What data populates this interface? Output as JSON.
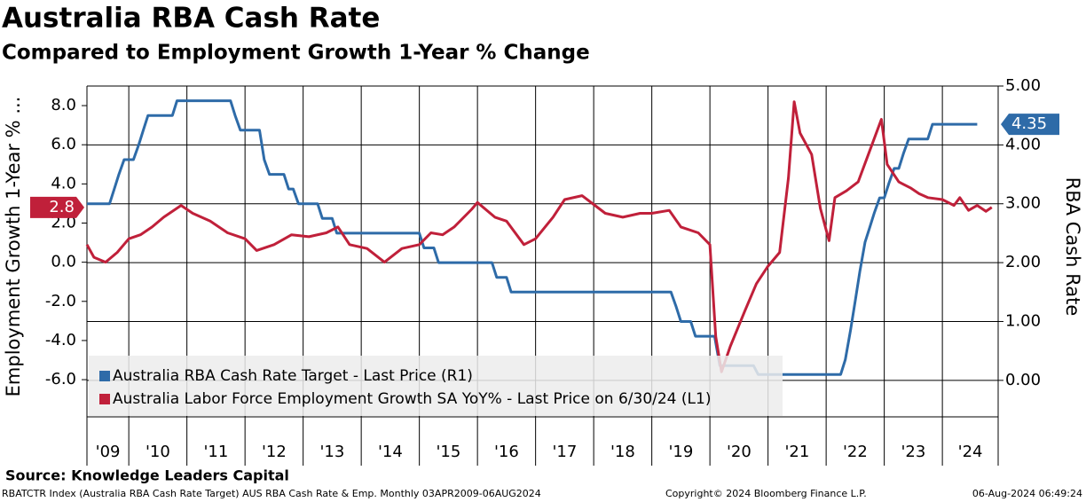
{
  "chart_data": {
    "type": "line",
    "title": "Australia RBA Cash Rate",
    "subtitle": "Compared to Employment Growth 1-Year % Change",
    "source": "Source: Knowledge Leaders Capital",
    "footer_left": "RBATCTR Index (Australia RBA Cash Rate Target) AUS RBA Cash Rate & Emp.  Monthly 03APR2009-06AUG2024",
    "footer_center": "Copyright© 2024 Bloomberg Finance L.P.",
    "footer_right": "06-Aug-2024 06:49:24",
    "y_label": "Employment Growth 1-Year % ...",
    "y2_label": "RBA Cash Rate",
    "xlim": [
      2009.28,
      2024.96
    ],
    "xticks": [
      2010,
      2011,
      2012,
      2013,
      2014,
      2015,
      2016,
      2017,
      2018,
      2019,
      2020,
      2021,
      2022,
      2023,
      2024
    ],
    "x_labels": [
      "'09",
      "'10",
      "'11",
      "'12",
      "'13",
      "'14",
      "'15",
      "'16",
      "'17",
      "'18",
      "'19",
      "'20",
      "'21",
      "'22",
      "'23",
      "'24"
    ],
    "ylim": [
      -7.9,
      9.0
    ],
    "yticks": [
      {
        "value": 8,
        "label": "8.0"
      },
      {
        "value": 6,
        "label": "6.0"
      },
      {
        "value": 4,
        "label": "4.0"
      },
      {
        "value": 2,
        "label": "2.0"
      },
      {
        "value": 0,
        "label": "0.0"
      },
      {
        "value": -2,
        "label": "-2.0"
      },
      {
        "value": -4,
        "label": "-4.0"
      },
      {
        "value": -6,
        "label": "-6.0"
      }
    ],
    "y2lim": [
      -0.62,
      5.0
    ],
    "y2ticks": [
      {
        "value": 5,
        "label": "5.00"
      },
      {
        "value": 4,
        "label": "4.00"
      },
      {
        "value": 3,
        "label": "3.00"
      },
      {
        "value": 2,
        "label": "2.00"
      },
      {
        "value": 1,
        "label": "1.00"
      },
      {
        "value": 0,
        "label": "0.00"
      }
    ],
    "grid": true,
    "legend": "bottom-left",
    "series": [
      {
        "name": "Australia RBA Cash Rate Target - Last Price (R1)",
        "color": "#2e6ba8",
        "axis": "y2",
        "x": [
          2009.28,
          2009.67,
          2009.75,
          2009.83,
          2009.92,
          2010.08,
          2010.17,
          2010.25,
          2010.33,
          2010.75,
          2010.83,
          2011.75,
          2011.83,
          2011.92,
          2012.25,
          2012.33,
          2012.42,
          2012.67,
          2012.75,
          2012.83,
          2012.92,
          2013.25,
          2013.33,
          2013.5,
          2013.58,
          2015.0,
          2015.08,
          2015.25,
          2015.33,
          2016.25,
          2016.33,
          2016.5,
          2016.58,
          2019.33,
          2019.42,
          2019.5,
          2019.67,
          2019.75,
          2020.08,
          2020.17,
          2020.75,
          2020.83,
          2022.25,
          2022.33,
          2022.42,
          2022.5,
          2022.58,
          2022.67,
          2022.75,
          2022.83,
          2022.92,
          2023.0,
          2023.08,
          2023.17,
          2023.25,
          2023.33,
          2023.42,
          2023.75,
          2023.83,
          2024.6
        ],
        "values": [
          3.0,
          3.0,
          3.25,
          3.5,
          3.75,
          3.75,
          4.0,
          4.25,
          4.5,
          4.5,
          4.75,
          4.75,
          4.5,
          4.25,
          4.25,
          3.75,
          3.5,
          3.5,
          3.25,
          3.25,
          3.0,
          3.0,
          2.75,
          2.75,
          2.5,
          2.5,
          2.25,
          2.25,
          2.0,
          2.0,
          1.75,
          1.75,
          1.5,
          1.5,
          1.25,
          1.0,
          1.0,
          0.75,
          0.75,
          0.25,
          0.25,
          0.1,
          0.1,
          0.35,
          0.85,
          1.35,
          1.85,
          2.35,
          2.6,
          2.85,
          3.1,
          3.1,
          3.35,
          3.6,
          3.6,
          3.85,
          4.1,
          4.1,
          4.35,
          4.35
        ]
      },
      {
        "name": "Australia Labor Force Employment Growth SA YoY% - Last Price on 6/30/24 (L1)",
        "color": "#c0203a",
        "axis": "y",
        "x": [
          2009.28,
          2009.4,
          2009.6,
          2009.8,
          2010.0,
          2010.2,
          2010.4,
          2010.6,
          2010.9,
          2011.1,
          2011.4,
          2011.7,
          2012.0,
          2012.2,
          2012.5,
          2012.8,
          2013.1,
          2013.4,
          2013.6,
          2013.8,
          2014.1,
          2014.4,
          2014.7,
          2015.0,
          2015.2,
          2015.4,
          2015.6,
          2015.9,
          2016.0,
          2016.3,
          2016.5,
          2016.8,
          2017.0,
          2017.3,
          2017.5,
          2017.8,
          2018.0,
          2018.2,
          2018.5,
          2018.8,
          2019.0,
          2019.3,
          2019.5,
          2019.8,
          2020.0,
          2020.1,
          2020.2,
          2020.35,
          2020.6,
          2020.8,
          2021.0,
          2021.2,
          2021.35,
          2021.45,
          2021.55,
          2021.75,
          2021.9,
          2022.05,
          2022.15,
          2022.35,
          2022.55,
          2022.75,
          2022.95,
          2023.05,
          2023.25,
          2023.45,
          2023.6,
          2023.75,
          2024.0,
          2024.2,
          2024.3,
          2024.45,
          2024.6,
          2024.75,
          2024.85
        ],
        "values": [
          0.9,
          0.25,
          0.0,
          0.5,
          1.2,
          1.4,
          1.8,
          2.3,
          2.9,
          2.5,
          2.1,
          1.5,
          1.2,
          0.6,
          0.9,
          1.4,
          1.3,
          1.5,
          1.8,
          0.9,
          0.7,
          0.0,
          0.7,
          0.9,
          1.5,
          1.4,
          1.8,
          2.7,
          3.05,
          2.3,
          2.1,
          0.9,
          1.2,
          2.3,
          3.2,
          3.4,
          2.95,
          2.5,
          2.3,
          2.5,
          2.5,
          2.65,
          1.8,
          1.5,
          0.9,
          -3.8,
          -5.6,
          -4.3,
          -2.5,
          -1.1,
          -0.2,
          0.5,
          4.3,
          8.2,
          6.6,
          5.5,
          2.75,
          1.1,
          3.3,
          3.65,
          4.1,
          5.7,
          7.3,
          5.0,
          4.1,
          3.8,
          3.5,
          3.3,
          3.2,
          2.9,
          3.3,
          2.65,
          2.9,
          2.6,
          2.8
        ]
      }
    ]
  }
}
